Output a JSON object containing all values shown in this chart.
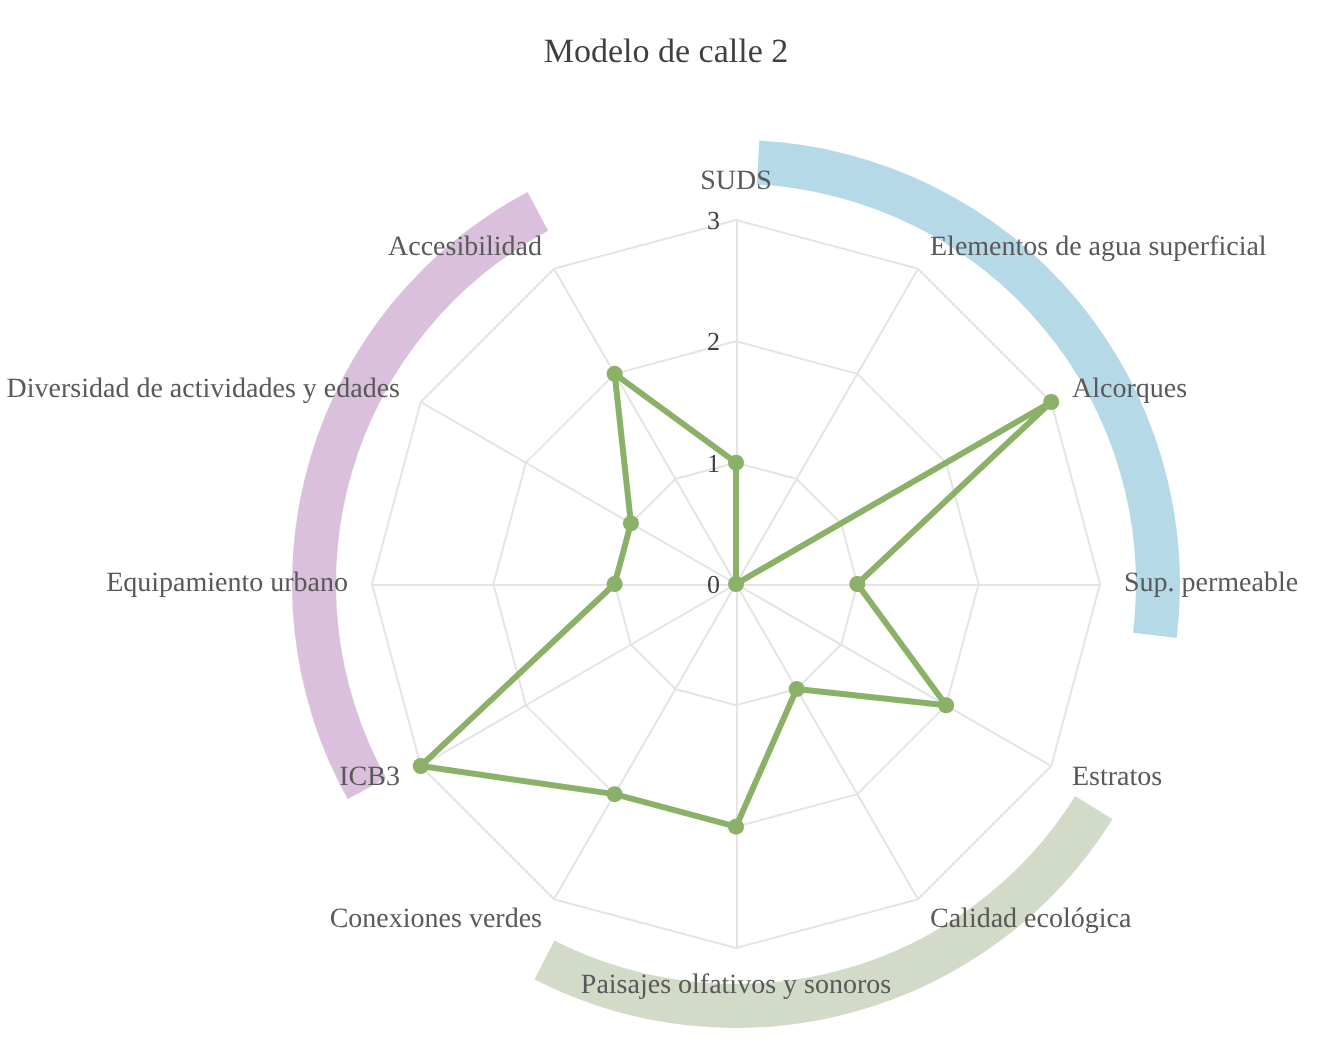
{
  "chart_data": {
    "type": "radar",
    "title": "Modelo de calle 2",
    "categories": [
      "SUDS",
      "Elementos de agua superficial",
      "Alcorques",
      "Sup. permeable",
      "Estratos",
      "Calidad ecológica",
      "Paisajes olfativos y sonoros",
      "Conexiones verdes",
      "ICB3",
      "Equipamiento urbano",
      "Diversidad de actividades y edades",
      "Accesibilidad"
    ],
    "series": [
      {
        "color": "#8bb068",
        "values": [
          1,
          0,
          3,
          1,
          2,
          1,
          2,
          2,
          3,
          1,
          1,
          2
        ]
      }
    ],
    "ylim": [
      0,
      3
    ],
    "yticks": [
      0,
      1,
      2,
      3
    ],
    "grid": true,
    "marker": "circle",
    "line_style": "solid"
  }
}
